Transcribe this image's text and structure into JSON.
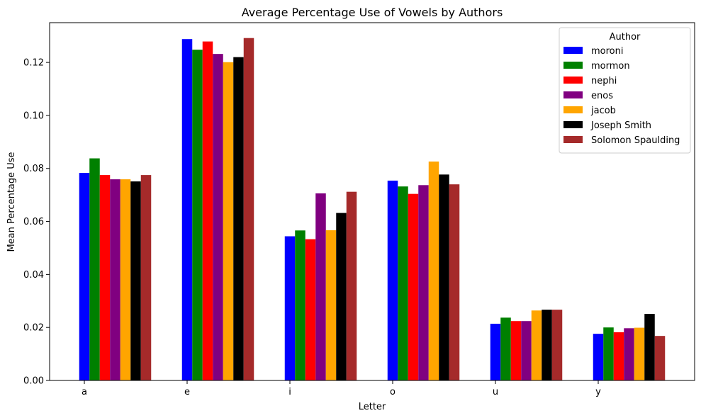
{
  "chart_data": {
    "type": "bar",
    "title": "Average Percentage Use of Vowels  by Authors",
    "xlabel": "Letter",
    "ylabel": "Mean Percentage Use",
    "categories": [
      "a",
      "e",
      "i",
      "o",
      "u",
      "y"
    ],
    "ylim": [
      0,
      0.135
    ],
    "yticks": [
      "0.00",
      "0.02",
      "0.04",
      "0.06",
      "0.08",
      "0.10",
      "0.12"
    ],
    "grid": false,
    "legend": {
      "title": "Author",
      "placement": "top-right"
    },
    "series": [
      {
        "name": "moroni",
        "color": "#0000ff",
        "values": [
          0.0783,
          0.1288,
          0.0544,
          0.0754,
          0.0214,
          0.0176
        ]
      },
      {
        "name": "mormon",
        "color": "#008000",
        "values": [
          0.0838,
          0.1248,
          0.0566,
          0.0732,
          0.0237,
          0.02
        ]
      },
      {
        "name": "nephi",
        "color": "#ff0000",
        "values": [
          0.0775,
          0.1279,
          0.0533,
          0.0704,
          0.0224,
          0.0182
        ]
      },
      {
        "name": "enos",
        "color": "#800080",
        "values": [
          0.0759,
          0.1232,
          0.0706,
          0.0737,
          0.0224,
          0.0197
        ]
      },
      {
        "name": "jacob",
        "color": "#ffa500",
        "values": [
          0.0759,
          0.1201,
          0.0567,
          0.0826,
          0.0264,
          0.0199
        ]
      },
      {
        "name": "Joseph Smith",
        "color": "#000000",
        "values": [
          0.0751,
          0.122,
          0.0632,
          0.0777,
          0.0267,
          0.0251
        ]
      },
      {
        "name": "Solomon Spaulding",
        "color": "#a52a2a",
        "values": [
          0.0775,
          0.1292,
          0.0712,
          0.074,
          0.0267,
          0.0168
        ]
      }
    ]
  }
}
